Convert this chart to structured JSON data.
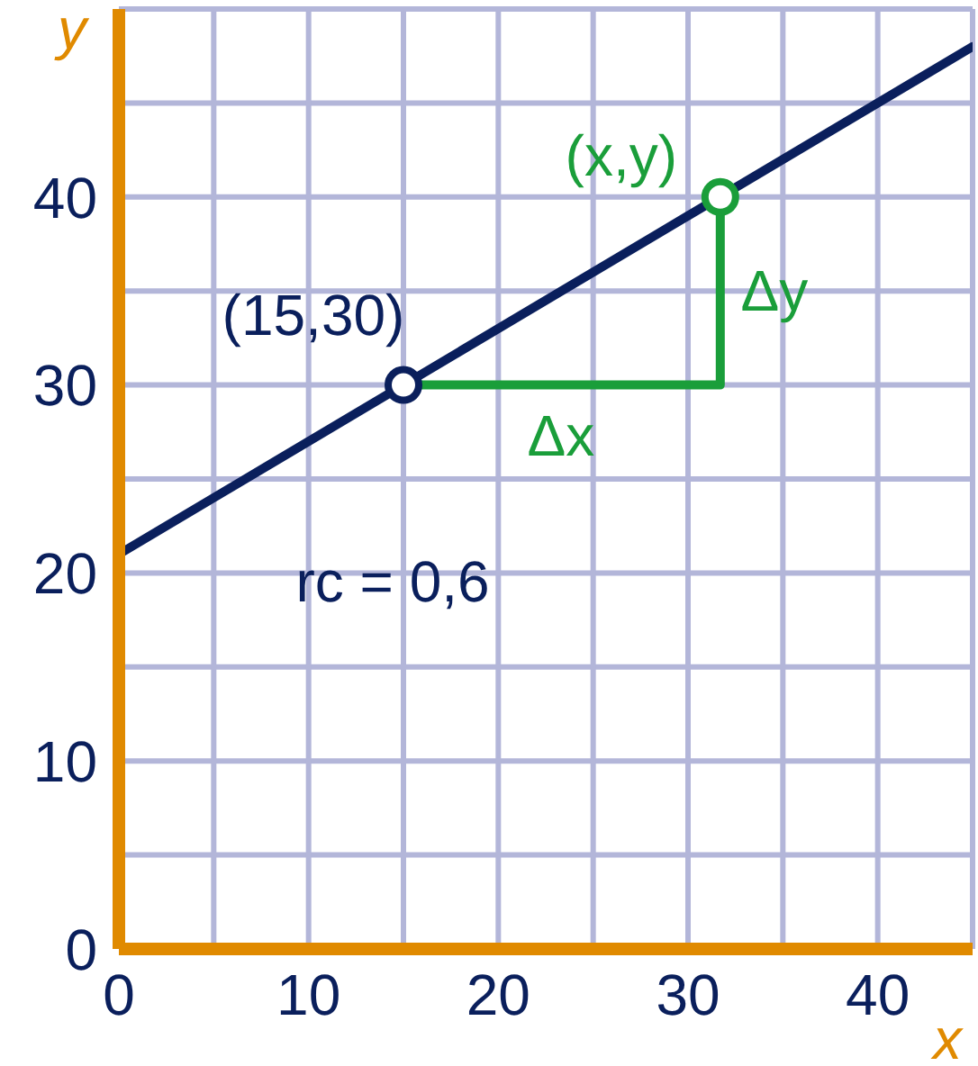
{
  "chart_data": {
    "type": "line",
    "xlabel": "x",
    "ylabel": "y",
    "xlim": [
      0,
      45
    ],
    "ylim": [
      0,
      50
    ],
    "xticks": [
      0,
      {
        "value": 5,
        "label": null
      },
      10,
      {
        "value": 15,
        "label": null
      },
      20,
      {
        "value": 25,
        "label": null
      },
      30,
      {
        "value": 35,
        "label": null
      },
      40,
      {
        "value": 45,
        "label": null
      }
    ],
    "yticks": [
      0,
      {
        "value": 5,
        "label": null
      },
      10,
      {
        "value": 15,
        "label": null
      },
      20,
      {
        "value": 25,
        "label": null
      },
      30,
      {
        "value": 35,
        "label": null
      },
      40,
      {
        "value": 45,
        "label": null
      },
      {
        "value": 50,
        "label": null
      }
    ],
    "grid": true,
    "line_style": "solid",
    "series": [
      {
        "color": "#0a1f5c",
        "x": [
          0,
          45
        ],
        "values": [
          21,
          48
        ],
        "marker": "none"
      },
      {
        "color": "#1a9e3a",
        "x": [
          15,
          31.7,
          31.7
        ],
        "values": [
          30,
          30,
          40
        ],
        "marker": "none"
      },
      {
        "type": "scatter",
        "color": "#0a1f5c",
        "x": [
          15
        ],
        "values": [
          30
        ],
        "marker": "circle"
      },
      {
        "type": "scatter",
        "color": "#1a9e3a",
        "x": [
          31.7
        ],
        "values": [
          40
        ],
        "marker": "circle"
      }
    ],
    "annotations": [
      {
        "text": "(15,30)",
        "x": 15,
        "y": 30
      },
      {
        "text": "(x,y)",
        "x": 31.7,
        "y": 40
      },
      {
        "text": "Δx",
        "x": 23.3,
        "y": 30
      },
      {
        "text": "Δy",
        "x": 31.7,
        "y": 35
      },
      "rc = 0,6"
    ]
  }
}
